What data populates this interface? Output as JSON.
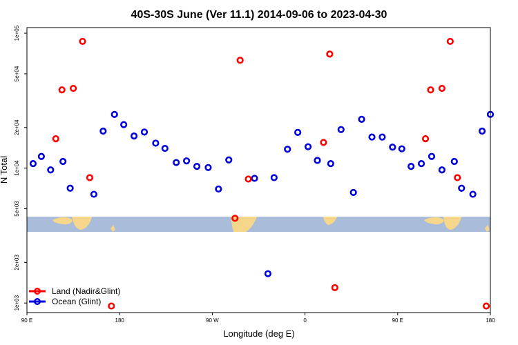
{
  "chart_data": {
    "type": "scatter",
    "title": "40S-30S June (Ver 11.1)   2014-09-06 to 2023-04-30",
    "xlabel": "Longitude (deg E)",
    "ylabel": "N Total",
    "x_tick_labels": [
      "90 E",
      "180",
      "90 W",
      "0",
      "90 E",
      "180"
    ],
    "y_tick_labels": [
      "1e+03",
      "2e+03",
      "5e+03",
      "1e+04",
      "2e+04",
      "5e+04",
      "1e+05"
    ],
    "x_ticks_deg": [
      90,
      180,
      270,
      360,
      450,
      540
    ],
    "y_ticks": [
      1000,
      2000,
      5000,
      10000,
      20000,
      50000,
      100000
    ],
    "xlim": [
      90,
      540
    ],
    "ylim": [
      850,
      110000
    ],
    "y_scale": "log",
    "grid": false,
    "legend_position": "bottom-left",
    "map_strip": true,
    "series": [
      {
        "name": "Land (Nadir&Glint)",
        "color": "#ff0000",
        "points": [
          [
            118,
            16500
          ],
          [
            124,
            38000
          ],
          [
            135,
            39000
          ],
          [
            144,
            87000
          ],
          [
            151,
            8500
          ],
          [
            172,
            950
          ],
          [
            292,
            4250
          ],
          [
            297,
            63000
          ],
          [
            305,
            8300
          ],
          [
            378,
            15500
          ],
          [
            384,
            70000
          ],
          [
            389,
            1300
          ],
          [
            477,
            16500
          ],
          [
            482,
            38000
          ],
          [
            493,
            39000
          ],
          [
            501,
            87000
          ],
          [
            508,
            8500
          ],
          [
            536,
            950
          ]
        ]
      },
      {
        "name": "Ocean (Glint)",
        "color": "#0000dd",
        "points": [
          [
            96,
            10800
          ],
          [
            104,
            12200
          ],
          [
            113,
            9700
          ],
          [
            125,
            11200
          ],
          [
            132,
            7100
          ],
          [
            155,
            6400
          ],
          [
            164,
            18800
          ],
          [
            175,
            25000
          ],
          [
            184,
            21000
          ],
          [
            194,
            17300
          ],
          [
            204,
            18500
          ],
          [
            215,
            15300
          ],
          [
            224,
            14000
          ],
          [
            235,
            11000
          ],
          [
            245,
            11300
          ],
          [
            255,
            10300
          ],
          [
            266,
            10100
          ],
          [
            276,
            7000
          ],
          [
            286,
            11500
          ],
          [
            311,
            8400
          ],
          [
            324,
            1650
          ],
          [
            330,
            8500
          ],
          [
            343,
            13800
          ],
          [
            353,
            18400
          ],
          [
            363,
            14400
          ],
          [
            372,
            11400
          ],
          [
            385,
            10800
          ],
          [
            395,
            19300
          ],
          [
            407,
            6600
          ],
          [
            415,
            23000
          ],
          [
            425,
            17000
          ],
          [
            435,
            17000
          ],
          [
            445,
            14300
          ],
          [
            454,
            13900
          ],
          [
            463,
            10300
          ],
          [
            473,
            10800
          ],
          [
            483,
            12200
          ],
          [
            493,
            9700
          ],
          [
            505,
            11200
          ],
          [
            512,
            7100
          ],
          [
            523,
            6400
          ],
          [
            532,
            18800
          ],
          [
            540,
            25000
          ]
        ]
      }
    ]
  }
}
